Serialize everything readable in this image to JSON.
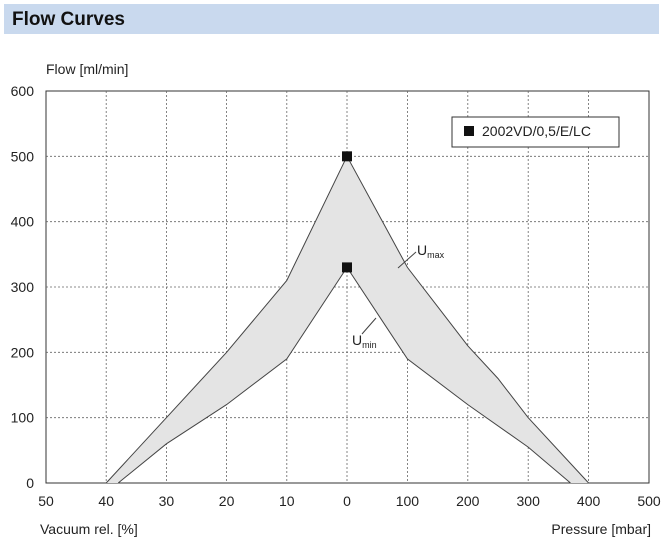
{
  "header": {
    "title": "Flow Curves"
  },
  "chart_data": {
    "type": "area",
    "ylabel": "Flow [ml/min]",
    "xlabel_left": "Vacuum rel. [%]",
    "xlabel_right": "Pressure [mbar]",
    "ylim": [
      0,
      600
    ],
    "y_ticks": [
      "0",
      "100",
      "200",
      "300",
      "400",
      "500",
      "600"
    ],
    "x_ticks_vacuum": [
      "50",
      "40",
      "30",
      "20",
      "10",
      "0"
    ],
    "x_ticks_pressure": [
      "100",
      "200",
      "300",
      "400",
      "500"
    ],
    "grid": true,
    "legend": {
      "label": "2002VD/0,5/E/LC",
      "placement": "top-right"
    },
    "curve_labels": {
      "umax": {
        "main": "U",
        "sub": "max"
      },
      "umin": {
        "main": "U",
        "sub": "min"
      }
    },
    "series": [
      {
        "name": "U max",
        "x": [
          -40,
          -30,
          -20,
          -10,
          0,
          100,
          150,
          200,
          250,
          300,
          400
        ],
        "y": [
          0,
          100,
          200,
          310,
          500,
          330,
          270,
          210,
          160,
          100,
          0
        ]
      },
      {
        "name": "U min",
        "x": [
          -38,
          -30,
          -20,
          -10,
          0,
          100,
          200,
          300,
          370
        ],
        "y": [
          0,
          60,
          120,
          190,
          330,
          190,
          120,
          55,
          0
        ]
      }
    ],
    "markers": [
      {
        "x": 0,
        "y": 500
      },
      {
        "x": 0,
        "y": 330
      }
    ]
  }
}
